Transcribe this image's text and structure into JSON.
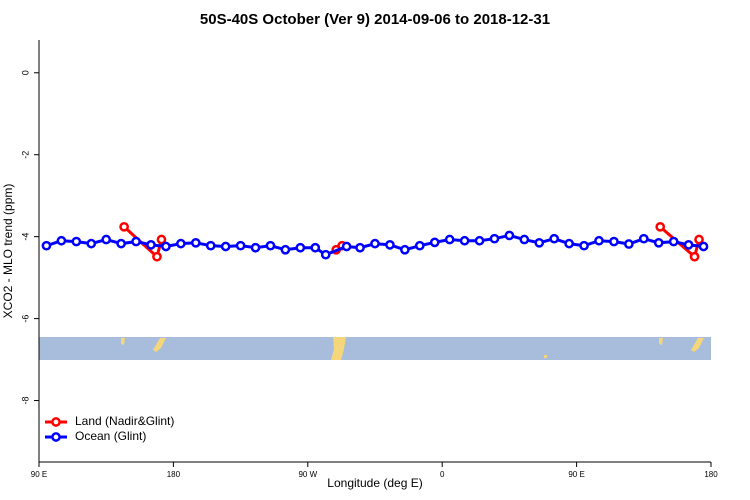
{
  "chart_data": {
    "type": "line",
    "title": "50S-40S October (Ver 9)   2014-09-06 to 2018-12-31",
    "x_label": "Longitude (deg E)",
    "y_label": "XCO2 - MLO trend (ppm)",
    "xlim": [
      90,
      540
    ],
    "ylim": [
      -9.5,
      0.8
    ],
    "xticks": [
      {
        "value": 90,
        "label": "90 E"
      },
      180,
      {
        "value": 270,
        "label": "90 W"
      },
      {
        "value": 360,
        "label": "0"
      },
      {
        "value": 450,
        "label": "90 E"
      },
      {
        "value": 540,
        "label": "180"
      }
    ],
    "yticks": [
      0,
      -2,
      -4,
      -6,
      -8
    ],
    "legend": "bottom-left",
    "series": [
      {
        "name": "Land (Nadir&Glint)",
        "color": "#ff0000",
        "x": [
          147,
          169,
          172,
          null,
          289,
          293,
          null,
          506,
          529,
          532
        ],
        "values": [
          -3.76,
          -4.49,
          -4.07,
          null,
          -4.32,
          -4.22,
          null,
          -3.76,
          -4.49,
          -4.07
        ]
      },
      {
        "name": "Ocean (Glint)",
        "color": "#0000ff",
        "x": [
          95,
          105,
          115,
          125,
          135,
          145,
          155,
          165,
          175,
          185,
          195,
          205,
          215,
          225,
          235,
          245,
          255,
          265,
          275,
          282,
          296,
          305,
          315,
          325,
          335,
          345,
          355,
          365,
          375,
          385,
          395,
          405,
          415,
          425,
          435,
          445,
          455,
          465,
          475,
          485,
          495,
          505,
          515,
          525,
          535
        ],
        "values": [
          -4.22,
          -4.1,
          -4.12,
          -4.17,
          -4.07,
          -4.17,
          -4.12,
          -4.2,
          -4.24,
          -4.17,
          -4.15,
          -4.22,
          -4.24,
          -4.22,
          -4.27,
          -4.22,
          -4.32,
          -4.27,
          -4.27,
          -4.44,
          -4.24,
          -4.27,
          -4.17,
          -4.2,
          -4.32,
          -4.22,
          -4.14,
          -4.07,
          -4.1,
          -4.1,
          -4.05,
          -3.97,
          -4.07,
          -4.15,
          -4.05,
          -4.17,
          -4.22,
          -4.1,
          -4.12,
          -4.18,
          -4.05,
          -4.15,
          -4.12,
          -4.2,
          -4.24
        ]
      }
    ]
  }
}
